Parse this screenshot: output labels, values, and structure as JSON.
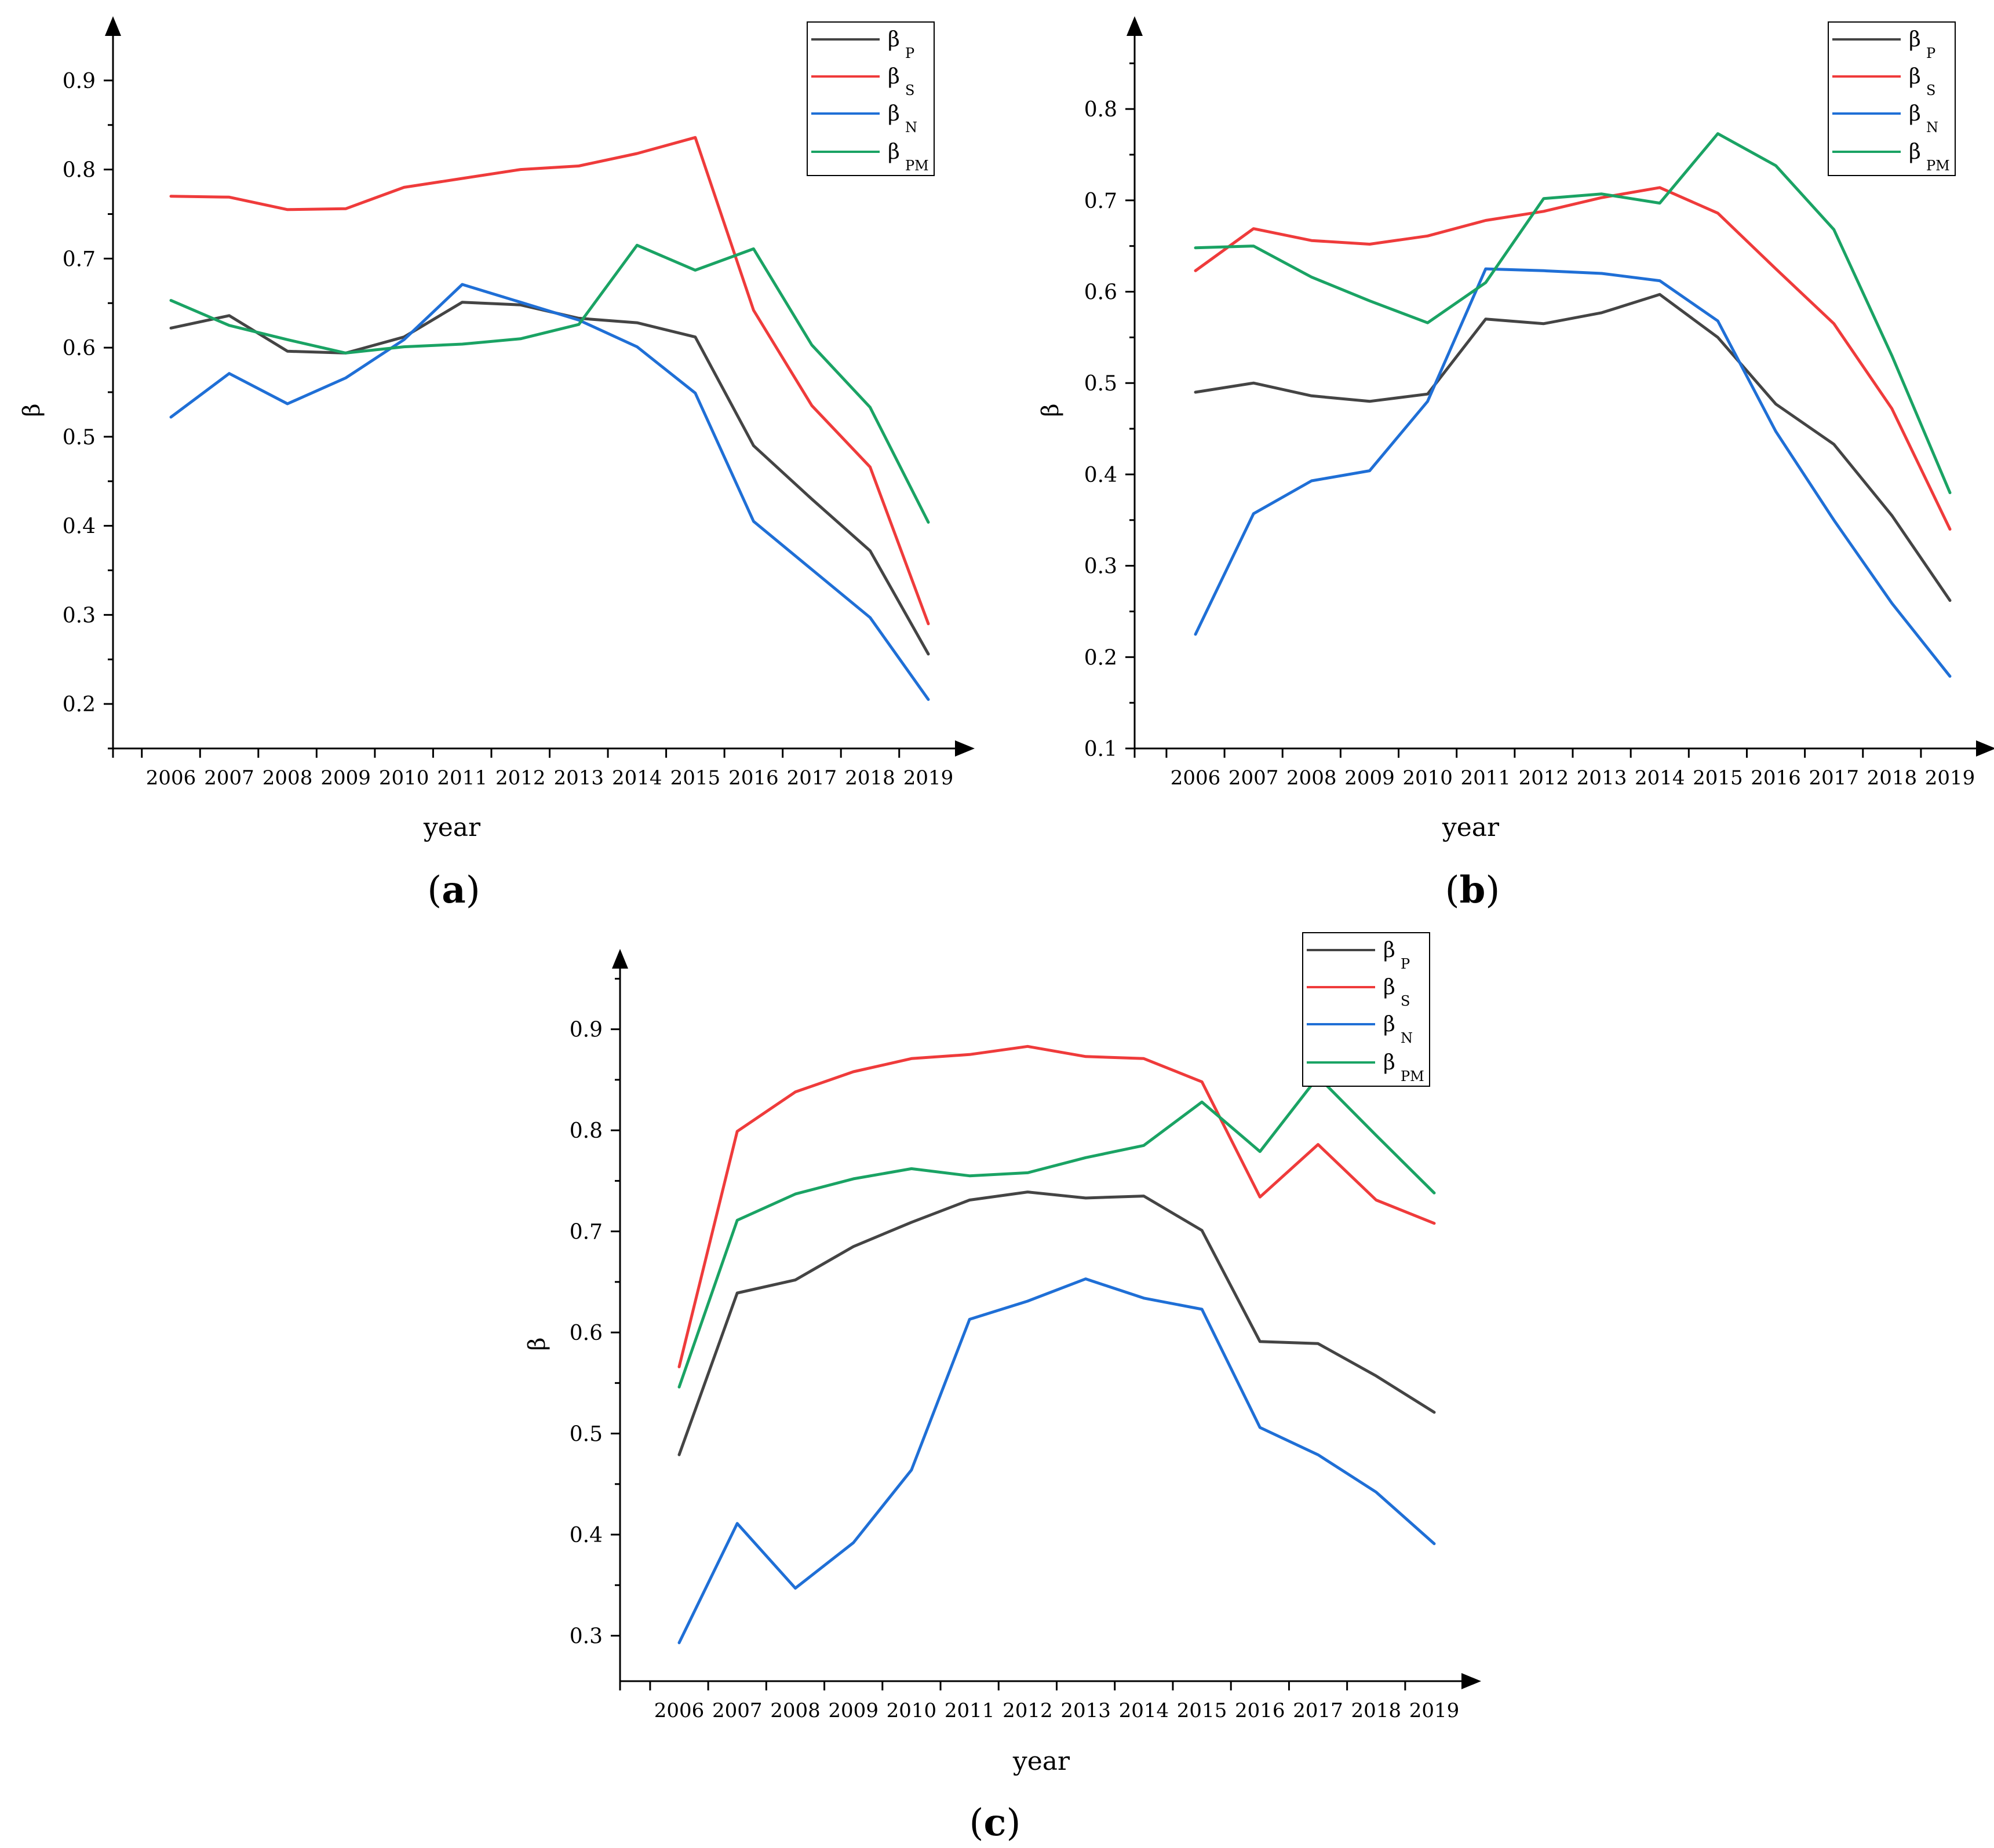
{
  "colors": {
    "P": "#444444",
    "S": "#ef3b3b",
    "N": "#1f6fd6",
    "PM": "#1aa364",
    "axis": "#000000"
  },
  "legend_entries": [
    {
      "key": "P",
      "symbol": "β",
      "sub": "P"
    },
    {
      "key": "S",
      "symbol": "β",
      "sub": "S"
    },
    {
      "key": "N",
      "symbol": "β",
      "sub": "N"
    },
    {
      "key": "PM",
      "symbol": "β",
      "sub": "PM"
    }
  ],
  "chart_data": [
    {
      "type": "line",
      "panel": "(a)",
      "panel_letter": "a",
      "xlabel": "year",
      "ylabel": "β",
      "ylim": [
        0.15,
        0.95
      ],
      "yticks": [
        0.2,
        0.3,
        0.4,
        0.5,
        0.6,
        0.7,
        0.8,
        0.9
      ],
      "x": [
        "2006",
        "2007",
        "2008",
        "2009",
        "2010",
        "2011",
        "2012",
        "2013",
        "2014",
        "2015",
        "2016",
        "2017",
        "2018",
        "2019"
      ],
      "series": [
        {
          "key": "P",
          "name": "βP",
          "values": [
            0.622,
            0.636,
            0.596,
            0.594,
            0.612,
            0.651,
            0.648,
            0.633,
            0.628,
            0.612,
            0.49,
            0.43,
            0.372,
            0.256
          ]
        },
        {
          "key": "S",
          "name": "βS",
          "values": [
            0.77,
            0.769,
            0.755,
            0.756,
            0.78,
            0.79,
            0.8,
            0.804,
            0.818,
            0.836,
            0.642,
            0.535,
            0.466,
            0.29
          ]
        },
        {
          "key": "N",
          "name": "βN",
          "values": [
            0.522,
            0.571,
            0.537,
            0.566,
            0.609,
            0.671,
            0.651,
            0.631,
            0.601,
            0.549,
            0.405,
            0.351,
            0.297,
            0.205
          ]
        },
        {
          "key": "PM",
          "name": "βPM",
          "values": [
            0.653,
            0.625,
            0.609,
            0.594,
            0.601,
            0.604,
            0.61,
            0.626,
            0.715,
            0.687,
            0.711,
            0.603,
            0.533,
            0.404
          ]
        }
      ]
    },
    {
      "type": "line",
      "panel": "(b)",
      "panel_letter": "b",
      "xlabel": "year",
      "ylabel": "β",
      "ylim": [
        0.1,
        0.88
      ],
      "yticks": [
        0.1,
        0.2,
        0.3,
        0.4,
        0.5,
        0.6,
        0.7,
        0.8
      ],
      "x": [
        "2006",
        "2007",
        "2008",
        "2009",
        "2010",
        "2011",
        "2012",
        "2013",
        "2014",
        "2015",
        "2016",
        "2017",
        "2018",
        "2019"
      ],
      "series": [
        {
          "key": "P",
          "name": "βP",
          "values": [
            0.49,
            0.5,
            0.486,
            0.48,
            0.488,
            0.57,
            0.565,
            0.577,
            0.597,
            0.55,
            0.477,
            0.433,
            0.355,
            0.262
          ]
        },
        {
          "key": "S",
          "name": "βS",
          "values": [
            0.623,
            0.669,
            0.656,
            0.652,
            0.661,
            0.678,
            0.688,
            0.703,
            0.714,
            0.686,
            0.625,
            0.565,
            0.472,
            0.34
          ]
        },
        {
          "key": "N",
          "name": "βN",
          "values": [
            0.225,
            0.357,
            0.393,
            0.404,
            0.48,
            0.625,
            0.623,
            0.62,
            0.612,
            0.568,
            0.447,
            0.35,
            0.259,
            0.179
          ]
        },
        {
          "key": "PM",
          "name": "βPM",
          "values": [
            0.648,
            0.65,
            0.616,
            0.59,
            0.566,
            0.61,
            0.702,
            0.707,
            0.697,
            0.773,
            0.738,
            0.668,
            0.53,
            0.38
          ]
        }
      ]
    },
    {
      "type": "line",
      "panel": "(c)",
      "panel_letter": "c",
      "xlabel": "year",
      "ylabel": "β",
      "ylim": [
        0.255,
        0.96
      ],
      "yticks": [
        0.3,
        0.4,
        0.5,
        0.6,
        0.7,
        0.8,
        0.9
      ],
      "x": [
        "2006",
        "2007",
        "2008",
        "2009",
        "2010",
        "2011",
        "2012",
        "2013",
        "2014",
        "2015",
        "2016",
        "2017",
        "2018",
        "2019"
      ],
      "series": [
        {
          "key": "P",
          "name": "βP",
          "values": [
            0.479,
            0.639,
            0.652,
            0.685,
            0.709,
            0.731,
            0.739,
            0.733,
            0.735,
            0.701,
            0.591,
            0.589,
            0.557,
            0.521
          ]
        },
        {
          "key": "S",
          "name": "βS",
          "values": [
            0.566,
            0.799,
            0.838,
            0.858,
            0.871,
            0.875,
            0.883,
            0.873,
            0.871,
            0.848,
            0.734,
            0.786,
            0.731,
            0.708
          ]
        },
        {
          "key": "N",
          "name": "βN",
          "values": [
            0.293,
            0.411,
            0.347,
            0.392,
            0.464,
            0.613,
            0.631,
            0.653,
            0.634,
            0.623,
            0.506,
            0.479,
            0.442,
            0.391
          ]
        },
        {
          "key": "PM",
          "name": "βPM",
          "values": [
            0.546,
            0.711,
            0.737,
            0.752,
            0.762,
            0.755,
            0.758,
            0.773,
            0.785,
            0.828,
            0.779,
            0.853,
            0.795,
            0.738
          ]
        }
      ]
    }
  ]
}
